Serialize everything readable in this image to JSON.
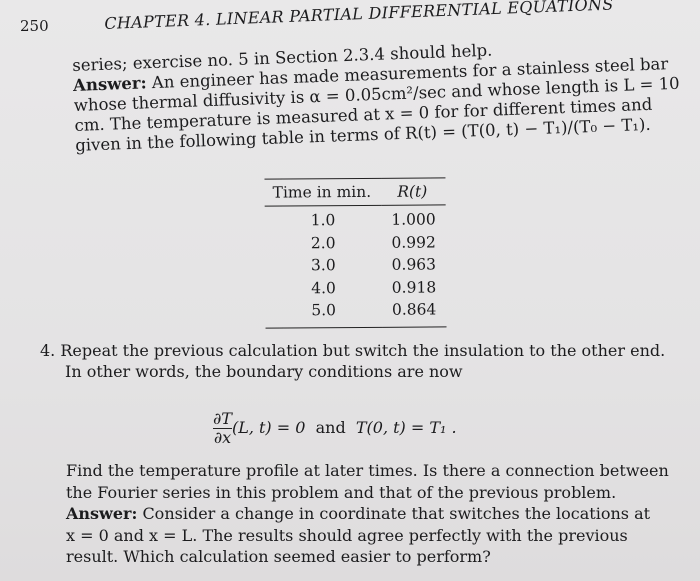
{
  "header": {
    "page_number": "250",
    "chapter": "CHAPTER 4.  LINEAR PARTIAL DIFFERENTIAL EQUATIONS"
  },
  "intro": {
    "lines": [
      "series; exercise no. 5 in Section 2.3.4 should help.",
      "An engineer has made measurements for a stainless steel bar",
      "whose thermal diffusivity is α = 0.05cm²/sec and whose length is L = 10",
      "cm.  The temperature is measured at x = 0 for for different times and",
      "given in the following table in terms of R(t) = (T(0, t) − T₁)/(T₀ − T₁)."
    ],
    "answer_label": "Answer:"
  },
  "table": {
    "headers": [
      "Time in min.",
      "R(t)"
    ],
    "rows": [
      [
        "1.0",
        "1.000"
      ],
      [
        "2.0",
        "0.992"
      ],
      [
        "3.0",
        "0.963"
      ],
      [
        "4.0",
        "0.918"
      ],
      [
        "5.0",
        "0.864"
      ]
    ]
  },
  "problem4": {
    "number": "4.",
    "lines": [
      "Repeat the previous calculation but switch the insulation to the other end.",
      "In other words, the boundary conditions are now"
    ],
    "equation": {
      "numerator": "∂T",
      "denominator": "∂x",
      "left": "(L, t) = 0",
      "and": "and",
      "right": "T(0, t) = T₁ ."
    },
    "body_lines": [
      "Find the temperature profile at later times. Is there a connection between",
      "the Fourier series in this problem and that of the previous problem.",
      "Consider a change in coordinate that switches the locations at",
      "x = 0 and x = L. The results should agree perfectly with the previous",
      "result. Which calculation seemed easier to perform?"
    ],
    "answer_label": "Answer:"
  }
}
